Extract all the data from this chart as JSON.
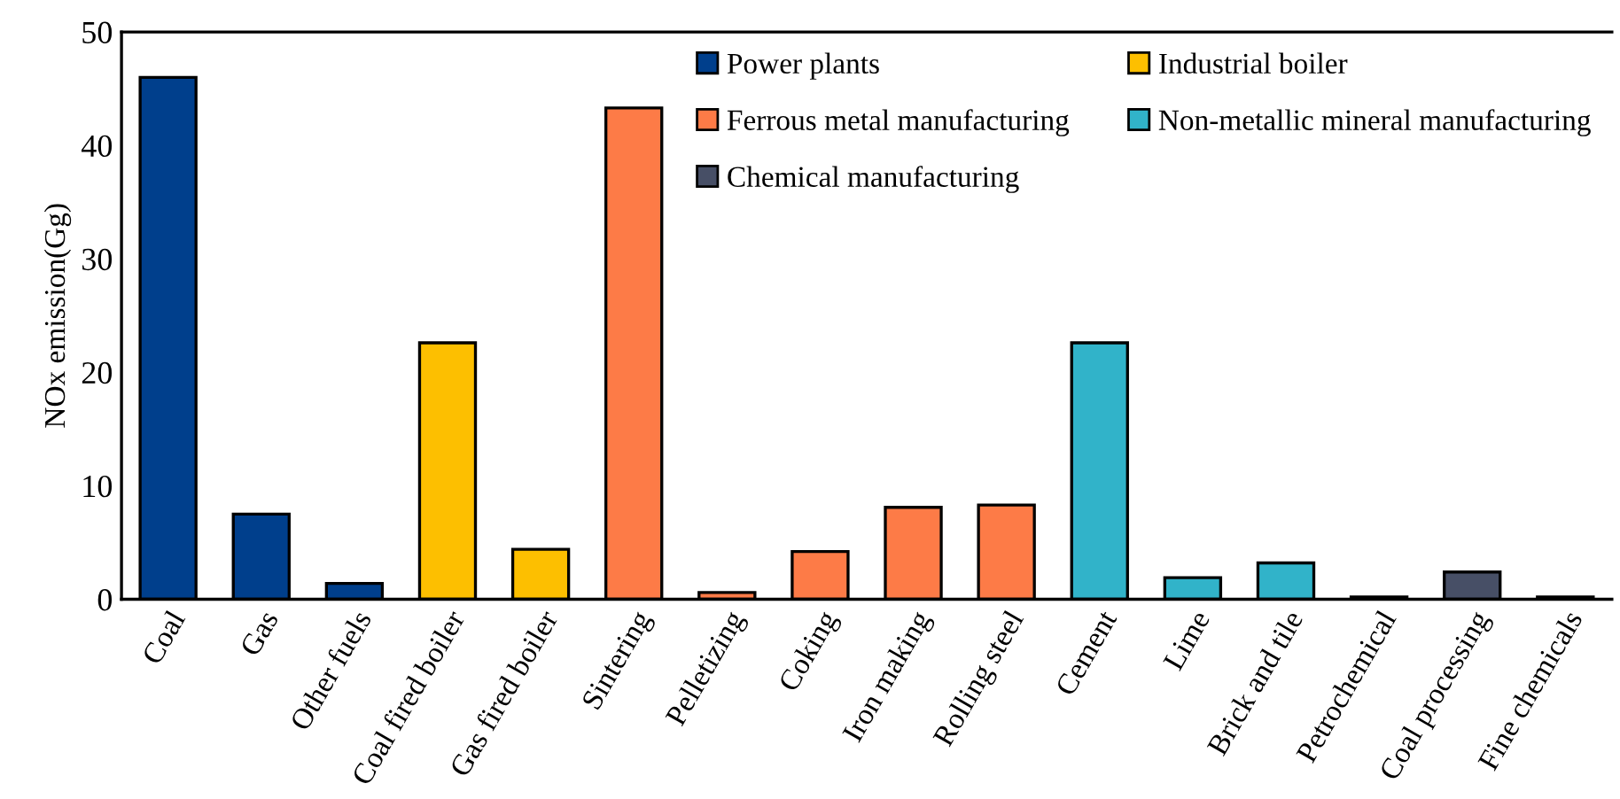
{
  "chart_data": {
    "type": "bar",
    "ylabel": "NOx emission(Gg)",
    "categories": [
      "Coal",
      "Gas",
      "Other fuels",
      "Coal fired boiler",
      "Gas fired boiler",
      "Sintering",
      "Pelletizing",
      "Coking",
      "Iron making",
      "Rolling steel",
      "Cement",
      "Lime",
      "Brick and tile",
      "Petrochemical",
      "Coal processing",
      "Fine chemicals"
    ],
    "series": [
      {
        "name": "Power plants",
        "color": "#003f8c",
        "values": [
          46,
          7.5,
          1.4,
          null,
          null,
          null,
          null,
          null,
          null,
          null,
          null,
          null,
          null,
          null,
          null,
          null
        ]
      },
      {
        "name": "Industrial boiler",
        "color": "#fdbf00",
        "values": [
          null,
          null,
          null,
          22.6,
          4.4,
          null,
          null,
          null,
          null,
          null,
          null,
          null,
          null,
          null,
          null,
          null
        ]
      },
      {
        "name": "Ferrous metal manufacturing",
        "color": "#fd7b47",
        "values": [
          null,
          null,
          null,
          null,
          null,
          43.3,
          0.6,
          4.2,
          8.1,
          8.3,
          null,
          null,
          null,
          null,
          null,
          null
        ]
      },
      {
        "name": "Non-metallic mineral manufacturing",
        "color": "#31b3c9",
        "values": [
          null,
          null,
          null,
          null,
          null,
          null,
          null,
          null,
          null,
          null,
          22.6,
          1.9,
          3.2,
          null,
          null,
          null
        ]
      },
      {
        "name": "Chemical manufacturing",
        "color": "#474f66",
        "values": [
          null,
          null,
          null,
          null,
          null,
          null,
          null,
          null,
          null,
          null,
          null,
          null,
          null,
          0.2,
          2.4,
          0.2
        ]
      }
    ],
    "ylim": [
      0,
      50
    ],
    "yticks": [
      0,
      10,
      20,
      30,
      40,
      50
    ],
    "grid": false,
    "legend": "top right"
  }
}
